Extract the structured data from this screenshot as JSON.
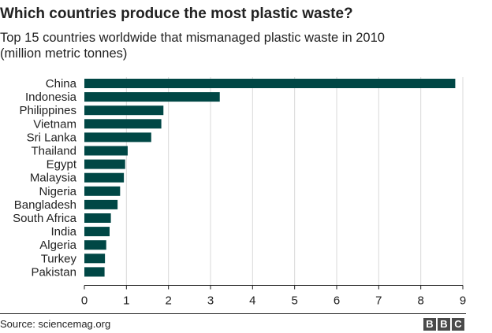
{
  "title": "Which countries produce the most plastic waste?",
  "subtitle_line1": "Top 15 countries worldwide that mismanaged plastic waste in 2010",
  "subtitle_line2": "(million metric tonnes)",
  "source": "Source: sciencemag.org",
  "logo": [
    "B",
    "B",
    "C"
  ],
  "colors": {
    "bar": "#004745",
    "grid": "#d9d9d9",
    "axis": "#222222",
    "text": "#222222"
  },
  "chart_data": {
    "type": "bar",
    "orientation": "horizontal",
    "title": "Which countries produce the most plastic waste?",
    "subtitle": "Top 15 countries worldwide that mismanaged plastic waste in 2010 (million metric tonnes)",
    "categories": [
      "China",
      "Indonesia",
      "Philippines",
      "Vietnam",
      "Sri Lanka",
      "Thailand",
      "Egypt",
      "Malaysia",
      "Nigeria",
      "Bangladesh",
      "South Africa",
      "India",
      "Algeria",
      "Turkey",
      "Pakistan"
    ],
    "values": [
      8.82,
      3.22,
      1.88,
      1.83,
      1.59,
      1.03,
      0.97,
      0.94,
      0.85,
      0.79,
      0.63,
      0.6,
      0.52,
      0.49,
      0.48
    ],
    "xticks": [
      0,
      1,
      2,
      3,
      4,
      5,
      6,
      7,
      8,
      9
    ],
    "xlim": [
      0,
      9
    ],
    "xlabel": "",
    "ylabel": "",
    "grid": true,
    "legend": "none"
  }
}
